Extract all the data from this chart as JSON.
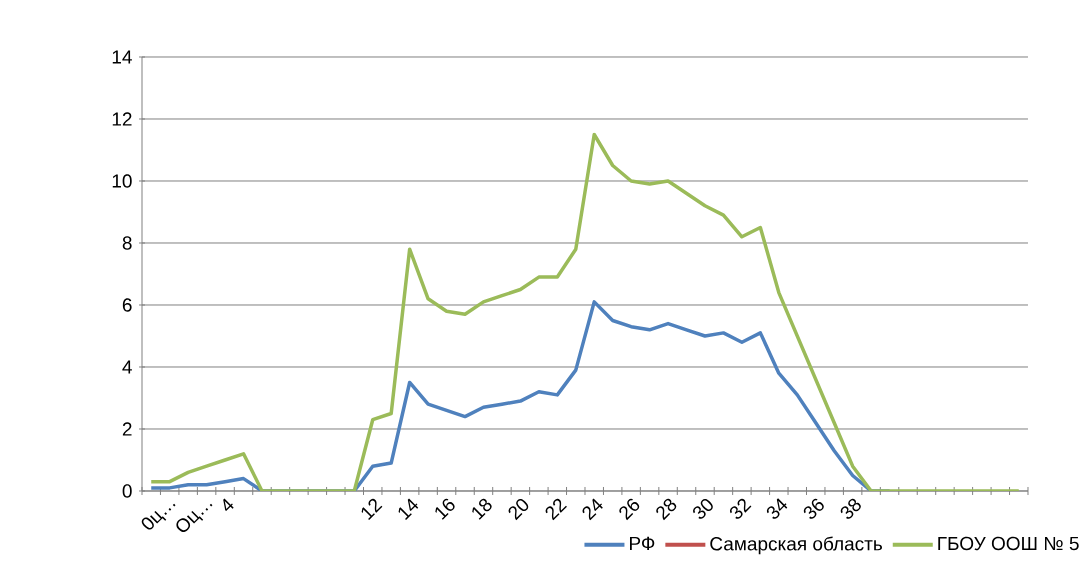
{
  "chart_data": {
    "type": "line",
    "categories": [
      null,
      "0ц…",
      null,
      "Оц…",
      "4",
      null,
      null,
      null,
      null,
      null,
      null,
      null,
      "12",
      null,
      "14",
      null,
      "16",
      null,
      "18",
      null,
      "20",
      null,
      "22",
      null,
      "24",
      null,
      "26",
      null,
      "28",
      null,
      "30",
      null,
      "32",
      null,
      "34",
      null,
      "36",
      null,
      "38",
      null,
      null,
      null,
      null,
      null,
      null,
      null,
      null,
      null
    ],
    "series": [
      {
        "name": "РФ",
        "color": "#4f81bd",
        "values": [
          0.1,
          0.1,
          0.2,
          0.2,
          0.3,
          0.4,
          0,
          0,
          0,
          0,
          0,
          0,
          0.8,
          0.9,
          3.5,
          2.8,
          2.6,
          2.4,
          2.7,
          2.8,
          2.9,
          3.2,
          3.1,
          3.9,
          6.1,
          5.5,
          5.3,
          5.2,
          5.4,
          5.2,
          5.0,
          5.1,
          4.8,
          5.1,
          3.8,
          3.1,
          2.2,
          1.3,
          0.5,
          0,
          0,
          null,
          null,
          null,
          null,
          null,
          null,
          null
        ]
      },
      {
        "name": "Самарская область",
        "color": "#c0504d",
        "values": [
          null,
          null,
          null,
          null,
          null,
          null,
          null,
          null,
          null,
          null,
          null,
          null,
          null,
          null,
          null,
          null,
          null,
          null,
          null,
          null,
          null,
          null,
          null,
          null,
          null,
          null,
          null,
          null,
          null,
          null,
          null,
          null,
          null,
          null,
          null,
          null,
          null,
          null,
          null,
          null,
          null,
          null,
          null,
          null,
          null,
          null,
          null,
          null
        ]
      },
      {
        "name": "ГБОУ ООШ № 5",
        "color": "#9bbb59",
        "values": [
          0.3,
          0.3,
          0.6,
          0.8,
          1.0,
          1.2,
          0,
          0,
          0,
          0,
          0,
          0,
          2.3,
          2.5,
          7.8,
          6.2,
          5.8,
          5.7,
          6.1,
          6.3,
          6.5,
          6.9,
          6.9,
          7.8,
          11.5,
          10.5,
          10.0,
          9.9,
          10.0,
          9.6,
          9.2,
          8.9,
          8.2,
          8.5,
          6.4,
          5.0,
          3.6,
          2.2,
          0.8,
          0,
          0,
          0,
          0,
          0,
          0,
          0,
          0,
          0
        ]
      }
    ],
    "ylim": [
      0,
      14
    ],
    "yticks": [
      0,
      2,
      4,
      6,
      8,
      10,
      12,
      14
    ],
    "grid": "y",
    "legend": "bottom",
    "marker": "none",
    "line_style": "solid"
  }
}
